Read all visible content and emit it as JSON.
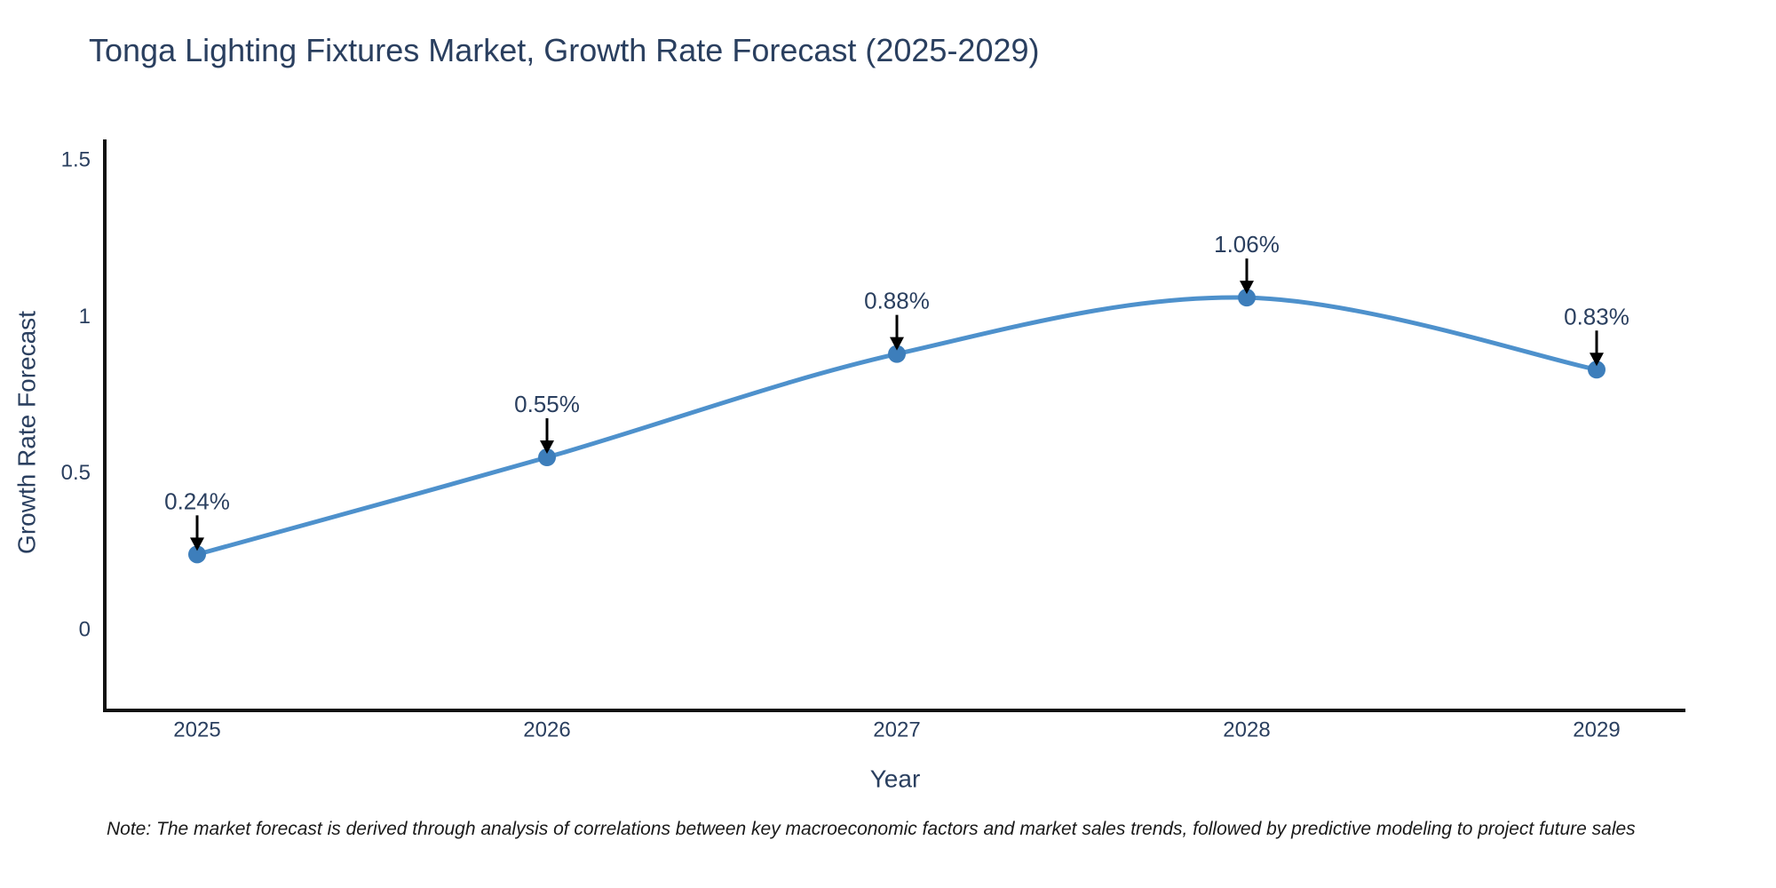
{
  "title": "Tonga Lighting Fixtures Market, Growth Rate Forecast (2025-2029)",
  "note": "Note: The market forecast is derived through analysis of correlations between key macroeconomic factors and market sales trends, followed by predictive modeling to project future sales",
  "chart_data": {
    "type": "line",
    "title": "Tonga Lighting Fixtures Market, Growth Rate Forecast (2025-2029)",
    "x": [
      "2025",
      "2026",
      "2027",
      "2028",
      "2029"
    ],
    "series": [
      {
        "name": "Growth Rate Forecast",
        "values": [
          0.24,
          0.55,
          0.88,
          1.06,
          0.83
        ]
      }
    ],
    "point_labels": [
      "0.24%",
      "0.55%",
      "0.88%",
      "1.06%",
      "0.83%"
    ],
    "xlabel": "Year",
    "ylabel": "Growth Rate Forecast",
    "yticks": {
      "values": [
        0,
        0.5,
        1,
        1.5
      ],
      "labels": [
        "0",
        "0.5",
        "1",
        "1.5"
      ]
    },
    "ylim": [
      -0.26,
      1.56
    ],
    "grid": false,
    "legend": false,
    "line_shape": "spline",
    "colors": {
      "line": "#4e91cc",
      "marker": "#3d7ebb",
      "arrow": "#000000",
      "text": "#2a3f5f",
      "axis": "#111111"
    }
  }
}
